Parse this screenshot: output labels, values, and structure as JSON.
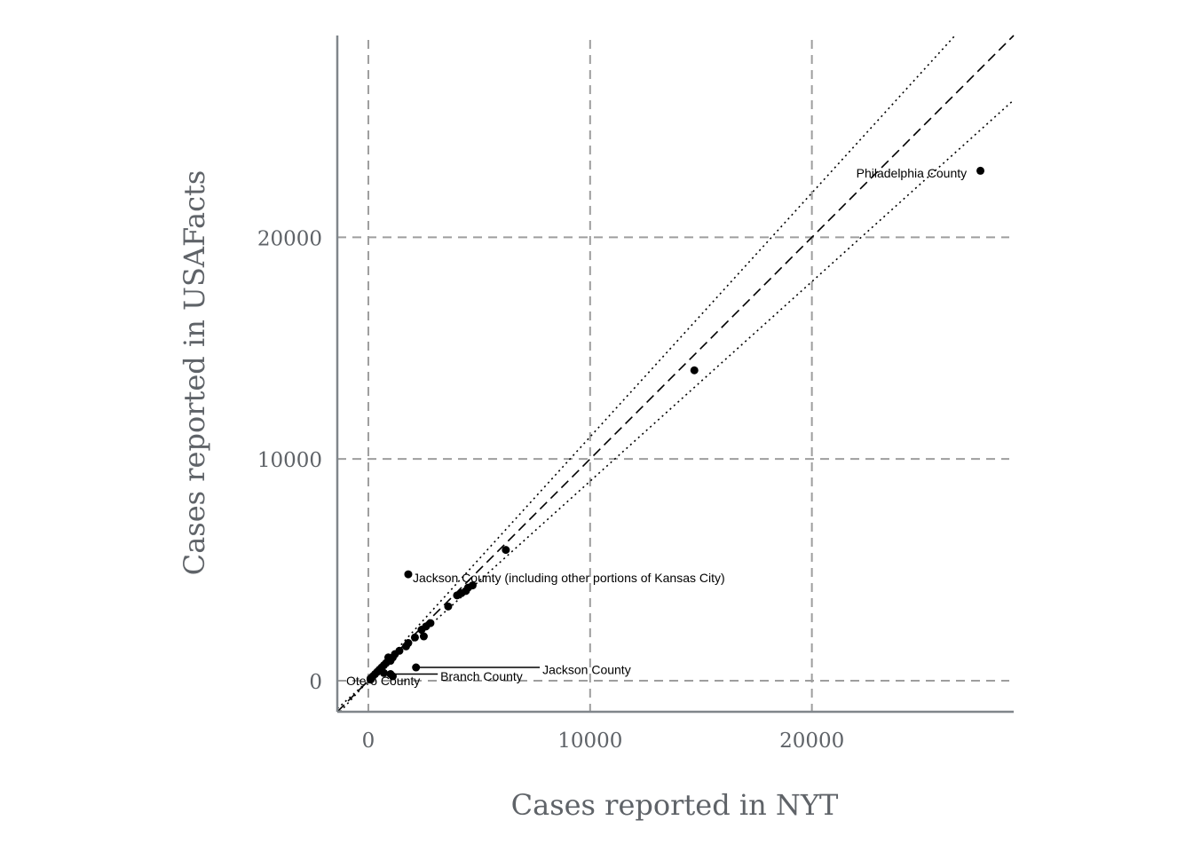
{
  "chart_data": {
    "type": "scatter",
    "title": "",
    "xlabel": "Cases reported in NYT",
    "ylabel": "Cases reported in USAFacts",
    "xlim": [
      -1400,
      29100
    ],
    "ylim": [
      -1400,
      29100
    ],
    "x_ticks": [
      0,
      10000,
      20000
    ],
    "y_ticks": [
      0,
      10000,
      20000
    ],
    "x_tick_labels": [
      "0",
      "10000",
      "20000"
    ],
    "y_tick_labels": [
      "0",
      "10000",
      "20000"
    ],
    "grid": true,
    "reference_lines": [
      {
        "style": "dashed",
        "slope": 1.0
      },
      {
        "style": "dotted",
        "slope": 1.1
      },
      {
        "style": "dotted",
        "slope": 0.9
      }
    ],
    "points": [
      {
        "x": 27600,
        "y": 23000
      },
      {
        "x": 14700,
        "y": 14000
      },
      {
        "x": 6200,
        "y": 5900
      },
      {
        "x": 1800,
        "y": 4800
      },
      {
        "x": 4700,
        "y": 4300
      },
      {
        "x": 4500,
        "y": 4200
      },
      {
        "x": 4400,
        "y": 4050
      },
      {
        "x": 4200,
        "y": 3950
      },
      {
        "x": 4000,
        "y": 3850
      },
      {
        "x": 3600,
        "y": 3350
      },
      {
        "x": 2800,
        "y": 2600
      },
      {
        "x": 2600,
        "y": 2450
      },
      {
        "x": 2400,
        "y": 2300
      },
      {
        "x": 2500,
        "y": 2000
      },
      {
        "x": 2100,
        "y": 1950
      },
      {
        "x": 1800,
        "y": 1700
      },
      {
        "x": 1700,
        "y": 1550
      },
      {
        "x": 1400,
        "y": 1350
      },
      {
        "x": 1200,
        "y": 1200
      },
      {
        "x": 1100,
        "y": 1050
      },
      {
        "x": 900,
        "y": 1050
      },
      {
        "x": 1000,
        "y": 900
      },
      {
        "x": 800,
        "y": 800
      },
      {
        "x": 700,
        "y": 700
      },
      {
        "x": 600,
        "y": 600
      },
      {
        "x": 500,
        "y": 500
      },
      {
        "x": 400,
        "y": 400
      },
      {
        "x": 300,
        "y": 300
      },
      {
        "x": 200,
        "y": 200
      },
      {
        "x": 100,
        "y": 100
      },
      {
        "x": 1000,
        "y": 300
      },
      {
        "x": 1100,
        "y": 200
      },
      {
        "x": 700,
        "y": 350
      },
      {
        "x": 2150,
        "y": 600
      },
      {
        "x": 100,
        "y": 50
      }
    ],
    "annotations": [
      {
        "text": "Philadelphia County",
        "x": 27600,
        "y": 23000,
        "label_x": 22000,
        "label_y": 22900,
        "anchor": "start",
        "leader": false
      },
      {
        "text": "Jackson County (including other portions of Kansas City)",
        "x": 1800,
        "y": 4800,
        "label_x": 2000,
        "label_y": 4650,
        "anchor": "start",
        "leader": false
      },
      {
        "text": "Jackson County",
        "x": 2150,
        "y": 600,
        "label_x": 7850,
        "label_y": 500,
        "anchor": "start",
        "leader": true
      },
      {
        "text": "Branch County",
        "x": 1000,
        "y": 300,
        "label_x": 3250,
        "label_y": 200,
        "anchor": "start",
        "leader": true
      },
      {
        "text": "Otero County",
        "x": 100,
        "y": 50,
        "label_x": -1000,
        "label_y": 0,
        "anchor": "start",
        "leader": false
      }
    ]
  }
}
